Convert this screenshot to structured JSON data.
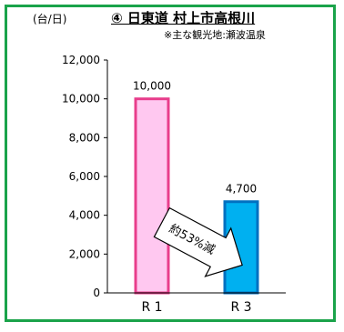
{
  "chart_data": {
    "type": "bar",
    "title": "④ 日東道 村上市高根川",
    "subtitle": "※主な観光地:瀬波温泉",
    "ylabel": "(台/日)",
    "ylim": [
      0,
      12000
    ],
    "yticks": [
      "0",
      "2,000",
      "4,000",
      "6,000",
      "8,000",
      "10,000",
      "12,000"
    ],
    "ytick_values": [
      0,
      2000,
      4000,
      6000,
      8000,
      10000,
      12000
    ],
    "categories": [
      "R 1",
      "R 3"
    ],
    "values": [
      10000,
      4700
    ],
    "value_labels": [
      "10,000",
      "4,700"
    ],
    "bar_fill": [
      "#ffc8f0",
      "#00b0f0"
    ],
    "bar_stroke": [
      "#e83e8c",
      "#0070c0"
    ],
    "annotation": "約53%減",
    "frame_color": "#1aa34a"
  }
}
